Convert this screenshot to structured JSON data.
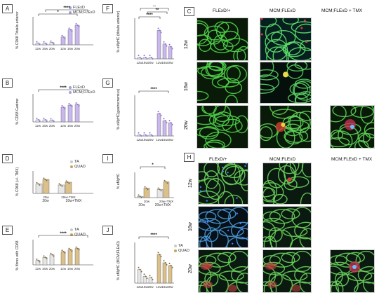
{
  "panels": {
    "A": {
      "label": "A",
      "ylabel": "% CD68\nTibialis anterior",
      "legend": [
        "FLExD",
        "MCM;FLExD"
      ],
      "xticks": [
        "12w",
        "16w",
        "20w",
        "12w",
        "16w",
        "20w"
      ],
      "stars": [
        "*",
        "****"
      ]
    },
    "B": {
      "label": "B",
      "ylabel": "% CD68\nGastroc",
      "legend": [
        "FLExD",
        "MCM;FLExD"
      ],
      "xticks": [
        "12w",
        "16w",
        "20w",
        "12w",
        "16w",
        "20w"
      ],
      "stars": [
        "****"
      ]
    },
    "D": {
      "label": "D",
      "ylabel": "% CD68 (+/- TMX)",
      "legend": [
        "TA",
        "QUAD"
      ],
      "groups": [
        "20w",
        "20w+TMX"
      ]
    },
    "E": {
      "label": "E",
      "ylabel": "% fibres with CD68",
      "legend": [
        "TA",
        "QUAD"
      ],
      "xticks": [
        "12w",
        "16w",
        "20w",
        "12w",
        "16w",
        "20w"
      ],
      "stars": [
        "****"
      ]
    },
    "F": {
      "label": "F",
      "ylabel": "% eMyHC (tibialis anterior)",
      "xticks": [
        "12w",
        "16w",
        "20w",
        "12w",
        "16w",
        "20w"
      ],
      "stars": [
        "**",
        "**",
        "****"
      ]
    },
    "G": {
      "label": "G",
      "ylabel": "% eMyHC(gastrocnemius)",
      "xticks": [
        "12w",
        "16w",
        "20w",
        "12w",
        "16w",
        "20w"
      ],
      "stars": [
        "****"
      ]
    },
    "I": {
      "label": "I",
      "ylabel": "% eMyHC",
      "groups": [
        "20w",
        "20w+TMX"
      ],
      "stars": [
        "*"
      ]
    },
    "J": {
      "label": "J",
      "ylabel": "% eMyHC (MCM;FLExD)",
      "legend": [
        "TA",
        "QUAD"
      ],
      "xticks": [
        "12w",
        "16w",
        "20w",
        "12w",
        "16w",
        "20w"
      ],
      "stars": [
        "****"
      ]
    }
  },
  "microscopy": {
    "C": {
      "label": "C",
      "headers": [
        "FLExD/+",
        "MCM;FLExD",
        "MCM;FLExD + TMX"
      ],
      "rows": [
        "12w",
        "16w",
        "20w"
      ]
    },
    "H": {
      "label": "H",
      "headers": [
        "FLExD/+",
        "MCM;FLExD",
        "MCM;FLExD + TMX"
      ],
      "rows": [
        "12w",
        "16w",
        "20w"
      ]
    }
  },
  "colors": {
    "blue": "#8ea8d8",
    "purple": "#b39be0",
    "gold": "#c8a45a",
    "grey": "#c9c9c9"
  },
  "chart_data": [
    {
      "type": "bar",
      "panel": "A",
      "categories": [
        "12w",
        "16w",
        "20w",
        "12w",
        "16w",
        "20w"
      ],
      "series": [
        {
          "name": "FLExD",
          "values": [
            0.15,
            0.15,
            0.2,
            null,
            null,
            null
          ]
        },
        {
          "name": "MCM;FLExD",
          "values": [
            null,
            null,
            null,
            0.7,
            1.35,
            1.75
          ]
        }
      ],
      "ylim": [
        0,
        2.5
      ]
    },
    {
      "type": "bar",
      "panel": "B",
      "categories": [
        "12w",
        "16w",
        "20w",
        "12w",
        "16w",
        "20w"
      ],
      "series": [
        {
          "name": "FLExD",
          "values": [
            0.3,
            0.3,
            0.25,
            null,
            null,
            null
          ]
        },
        {
          "name": "MCM;FLExD",
          "values": [
            null,
            null,
            null,
            2.1,
            2.4,
            2.5
          ]
        }
      ],
      "ylim": [
        0,
        4
      ]
    },
    {
      "type": "bar",
      "panel": "D",
      "categories": [
        "20w",
        "20w+TMX"
      ],
      "series": [
        {
          "name": "TA",
          "values": [
            1.7,
            1.5
          ]
        },
        {
          "name": "QUAD",
          "values": [
            2.5,
            2.0
          ]
        }
      ],
      "ylim": [
        0,
        4
      ]
    },
    {
      "type": "bar",
      "panel": "E",
      "categories": [
        "12w",
        "16w",
        "20w",
        "12w",
        "16w",
        "20w"
      ],
      "series": [
        {
          "name": "TA",
          "values": [
            0.7,
            1.2,
            1.6,
            null,
            null,
            null
          ]
        },
        {
          "name": "QUAD",
          "values": [
            null,
            null,
            null,
            2.1,
            2.4,
            2.6
          ]
        }
      ],
      "ylim": [
        0,
        4
      ]
    },
    {
      "type": "bar",
      "panel": "F",
      "categories": [
        "12w",
        "16w",
        "20w",
        "12w",
        "16w",
        "20w"
      ],
      "series": [
        {
          "values": [
            0.05,
            0.05,
            0.05,
            1.05,
            0.55,
            0.45
          ]
        }
      ],
      "ylim": [
        0,
        1.5
      ]
    },
    {
      "type": "bar",
      "panel": "G",
      "categories": [
        "12w",
        "16w",
        "20w",
        "12w",
        "16w",
        "20w"
      ],
      "series": [
        {
          "values": [
            0.1,
            0.1,
            0.1,
            2.2,
            1.5,
            1.3
          ]
        }
      ],
      "ylim": [
        0,
        4
      ]
    },
    {
      "type": "bar",
      "panel": "I",
      "categories": [
        "20w",
        "20w+TMX"
      ],
      "series": [
        {
          "values": [
            0.2,
            1.3
          ]
        },
        {
          "values": [
            1.5,
            2.5
          ]
        }
      ],
      "ylim": [
        0,
        4
      ]
    },
    {
      "type": "bar",
      "panel": "J",
      "categories": [
        "12w",
        "16w",
        "20w",
        "12w",
        "16w",
        "20w"
      ],
      "series": [
        {
          "name": "TA",
          "values": [
            1.0,
            0.5,
            0.4,
            null,
            null,
            null
          ]
        },
        {
          "name": "QUAD",
          "values": [
            null,
            null,
            null,
            2.1,
            1.5,
            1.3
          ]
        }
      ],
      "ylim": [
        0,
        3
      ]
    }
  ]
}
